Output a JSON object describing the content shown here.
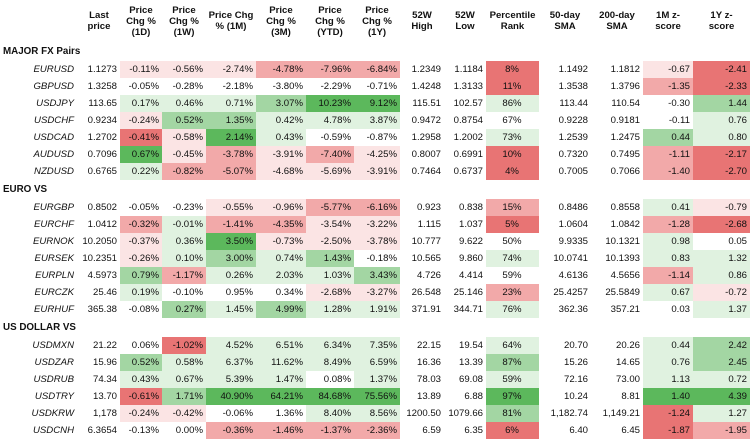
{
  "headers": [
    [
      "Last",
      "price"
    ],
    [
      "Price",
      "Chg %",
      "(1D)"
    ],
    [
      "Price",
      "Chg %",
      "(1W)"
    ],
    [
      "Price Chg",
      "% (1M)"
    ],
    [
      "Price",
      "Chg %",
      "(3M)"
    ],
    [
      "Price",
      "Chg %",
      "(YTD)"
    ],
    [
      "Price",
      "Chg %",
      "(1Y)"
    ],
    [
      "52W",
      "High"
    ],
    [
      "52W",
      "Low"
    ],
    [
      "Percentile",
      "Rank"
    ],
    [
      "50-day",
      "SMA"
    ],
    [
      "200-day",
      "SMA"
    ],
    [
      "1M z-",
      "score"
    ],
    [
      "1Y z-",
      "score"
    ]
  ],
  "colors": {
    "red_strong": "#e87474",
    "red_mid": "#f2a9a9",
    "red_light": "#fbe4e4",
    "green_strong": "#5cb85c",
    "green_mid": "#a3d6a3",
    "green_light": "#e0f2e0"
  },
  "sections": [
    {
      "title": "MAJOR FX Pairs",
      "rows": [
        {
          "name": "EURUSD",
          "cells": [
            "1.1273",
            "-0.11%",
            "-0.56%",
            "-2.74%",
            "-4.78%",
            "-7.96%",
            "-6.84%",
            "1.2349",
            "1.1184",
            "8%",
            "1.1492",
            "1.1812",
            "-0.67",
            "-2.41"
          ],
          "shades": [
            "",
            "rl",
            "rl",
            "rl",
            "rm",
            "rm",
            "rm",
            "",
            "",
            "rs",
            "",
            "",
            "rl",
            "rs"
          ]
        },
        {
          "name": "GBPUSD",
          "cells": [
            "1.3258",
            "-0.05%",
            "-0.28%",
            "-2.18%",
            "-3.80%",
            "-2.29%",
            "-0.71%",
            "1.4248",
            "1.3133",
            "11%",
            "1.3538",
            "1.3796",
            "-1.35",
            "-2.33"
          ],
          "shades": [
            "",
            "",
            "",
            "",
            "",
            "",
            "",
            "",
            "",
            "rs",
            "",
            "",
            "rm",
            "rs"
          ]
        },
        {
          "name": "USDJPY",
          "cells": [
            "113.65",
            "0.17%",
            "0.46%",
            "0.71%",
            "3.07%",
            "10.23%",
            "9.12%",
            "115.51",
            "102.57",
            "86%",
            "113.44",
            "110.54",
            "-0.30",
            "1.44"
          ],
          "shades": [
            "",
            "gl",
            "gl",
            "gl",
            "gm",
            "gs",
            "gs",
            "",
            "",
            "gl",
            "",
            "",
            "",
            "gm"
          ]
        },
        {
          "name": "USDCHF",
          "cells": [
            "0.9234",
            "-0.24%",
            "0.52%",
            "1.35%",
            "0.42%",
            "4.78%",
            "3.87%",
            "0.9472",
            "0.8754",
            "67%",
            "0.9228",
            "0.9181",
            "-0.11",
            "0.76"
          ],
          "shades": [
            "",
            "rl",
            "gm",
            "gm",
            "gl",
            "gl",
            "gl",
            "",
            "",
            "",
            "",
            "",
            "",
            "gl"
          ]
        },
        {
          "name": "USDCAD",
          "cells": [
            "1.2702",
            "-0.41%",
            "-0.58%",
            "2.14%",
            "0.43%",
            "-0.59%",
            "-0.87%",
            "1.2958",
            "1.2002",
            "73%",
            "1.2539",
            "1.2475",
            "0.44",
            "0.80"
          ],
          "shades": [
            "",
            "rs",
            "rl",
            "gs",
            "gl",
            "",
            "",
            "",
            "",
            "gl",
            "",
            "",
            "gm",
            "gl"
          ]
        },
        {
          "name": "AUDUSD",
          "cells": [
            "0.7096",
            "0.67%",
            "-0.45%",
            "-3.78%",
            "-3.91%",
            "-7.40%",
            "-4.25%",
            "0.8007",
            "0.6991",
            "10%",
            "0.7320",
            "0.7495",
            "-1.11",
            "-2.17"
          ],
          "shades": [
            "",
            "gs",
            "rl",
            "rm",
            "rl",
            "rm",
            "rl",
            "",
            "",
            "rs",
            "",
            "",
            "rm",
            "rs"
          ]
        },
        {
          "name": "NZDUSD",
          "cells": [
            "0.6765",
            "0.22%",
            "-0.82%",
            "-5.07%",
            "-4.68%",
            "-5.69%",
            "-3.91%",
            "0.7464",
            "0.6737",
            "4%",
            "0.7005",
            "0.7066",
            "-1.40",
            "-2.70"
          ],
          "shades": [
            "",
            "gl",
            "rm",
            "rm",
            "rl",
            "rl",
            "rl",
            "",
            "",
            "rs",
            "",
            "",
            "rm",
            "rs"
          ]
        }
      ]
    },
    {
      "title": "EURO VS",
      "rows": [
        {
          "name": "EURGBP",
          "cells": [
            "0.8502",
            "-0.05%",
            "-0.23%",
            "-0.55%",
            "-0.96%",
            "-5.77%",
            "-6.16%",
            "0.923",
            "0.838",
            "15%",
            "0.8486",
            "0.8558",
            "0.41",
            "-0.79"
          ],
          "shades": [
            "",
            "",
            "",
            "rl",
            "rl",
            "rm",
            "rm",
            "",
            "",
            "rm",
            "",
            "",
            "gl",
            "rl"
          ]
        },
        {
          "name": "EURCHF",
          "cells": [
            "1.0412",
            "-0.32%",
            "-0.01%",
            "-1.41%",
            "-4.35%",
            "-3.54%",
            "-3.22%",
            "1.115",
            "1.037",
            "5%",
            "1.0604",
            "1.0842",
            "-1.28",
            "-2.68"
          ],
          "shades": [
            "",
            "rm",
            "gl",
            "rm",
            "rm",
            "rl",
            "rl",
            "",
            "",
            "rs",
            "",
            "",
            "rm",
            "rs"
          ]
        },
        {
          "name": "EURNOK",
          "cells": [
            "10.2050",
            "-0.37%",
            "0.36%",
            "3.50%",
            "-0.73%",
            "-2.50%",
            "-3.78%",
            "10.777",
            "9.622",
            "50%",
            "9.9335",
            "10.1321",
            "0.98",
            "0.05"
          ],
          "shades": [
            "",
            "rl",
            "gl",
            "gs",
            "rl",
            "rl",
            "rl",
            "",
            "",
            "",
            "",
            "",
            "gl",
            ""
          ]
        },
        {
          "name": "EURSEK",
          "cells": [
            "10.2351",
            "-0.26%",
            "0.10%",
            "3.00%",
            "0.74%",
            "1.43%",
            "-0.18%",
            "10.565",
            "9.860",
            "74%",
            "10.0741",
            "10.1393",
            "0.83",
            "1.32"
          ],
          "shades": [
            "",
            "rl",
            "gl",
            "gm",
            "gl",
            "gm",
            "",
            "",
            "",
            "gl",
            "",
            "",
            "gl",
            "gl"
          ]
        },
        {
          "name": "EURPLN",
          "cells": [
            "4.5973",
            "0.79%",
            "-1.17%",
            "0.26%",
            "2.03%",
            "1.03%",
            "3.43%",
            "4.726",
            "4.414",
            "59%",
            "4.6136",
            "4.5656",
            "-1.14",
            "0.86"
          ],
          "shades": [
            "",
            "gm",
            "rm",
            "gl",
            "gl",
            "gl",
            "gm",
            "",
            "",
            "",
            "",
            "",
            "rm",
            "gl"
          ]
        },
        {
          "name": "EURCZK",
          "cells": [
            "25.46",
            "0.19%",
            "-0.10%",
            "0.95%",
            "0.34%",
            "-2.68%",
            "-3.27%",
            "26.548",
            "25.146",
            "23%",
            "25.4257",
            "25.5849",
            "0.67",
            "-0.72"
          ],
          "shades": [
            "",
            "gl",
            "",
            "",
            "",
            "rl",
            "rl",
            "",
            "",
            "rm",
            "",
            "",
            "gl",
            "rl"
          ]
        },
        {
          "name": "EURHUF",
          "cells": [
            "365.38",
            "-0.08%",
            "0.27%",
            "1.45%",
            "4.99%",
            "1.28%",
            "1.91%",
            "371.91",
            "344.71",
            "76%",
            "362.36",
            "357.21",
            "0.03",
            "1.37"
          ],
          "shades": [
            "",
            "",
            "gm",
            "gl",
            "gm",
            "gl",
            "gl",
            "",
            "",
            "gl",
            "",
            "",
            "",
            "gl"
          ]
        }
      ]
    },
    {
      "title": "US DOLLAR VS",
      "rows": [
        {
          "name": "USDMXN",
          "cells": [
            "21.22",
            "0.06%",
            "-1.02%",
            "4.52%",
            "6.51%",
            "6.34%",
            "7.35%",
            "22.15",
            "19.54",
            "64%",
            "20.70",
            "20.26",
            "0.44",
            "2.42"
          ],
          "shades": [
            "",
            "",
            "rs",
            "gl",
            "gl",
            "gl",
            "gl",
            "",
            "",
            "gl",
            "",
            "",
            "gl",
            "gm"
          ]
        },
        {
          "name": "USDZAR",
          "cells": [
            "15.96",
            "0.52%",
            "0.58%",
            "6.37%",
            "11.62%",
            "8.49%",
            "6.59%",
            "16.36",
            "13.39",
            "87%",
            "15.26",
            "14.65",
            "0.76",
            "2.45"
          ],
          "shades": [
            "",
            "gm",
            "gl",
            "gl",
            "gl",
            "gl",
            "gl",
            "",
            "",
            "gm",
            "",
            "",
            "gl",
            "gm"
          ]
        },
        {
          "name": "USDRUB",
          "cells": [
            "74.34",
            "0.43%",
            "0.67%",
            "5.39%",
            "1.47%",
            "0.08%",
            "1.37%",
            "78.03",
            "69.08",
            "59%",
            "72.16",
            "73.00",
            "1.13",
            "0.72"
          ],
          "shades": [
            "",
            "gl",
            "gl",
            "gl",
            "gl",
            "",
            "gl",
            "",
            "",
            "gl",
            "",
            "",
            "gl",
            "gl"
          ]
        },
        {
          "name": "USDTRY",
          "cells": [
            "13.70",
            "-0.61%",
            "1.71%",
            "40.90%",
            "64.21%",
            "84.68%",
            "75.56%",
            "13.89",
            "6.88",
            "97%",
            "10.24",
            "8.81",
            "1.40",
            "4.39"
          ],
          "shades": [
            "",
            "rs",
            "gm",
            "gs",
            "gs",
            "gs",
            "gs",
            "",
            "",
            "gs",
            "",
            "",
            "gs",
            "gs"
          ]
        },
        {
          "name": "USDKRW",
          "cells": [
            "1,178",
            "-0.24%",
            "-0.42%",
            "-0.06%",
            "1.36%",
            "8.40%",
            "8.56%",
            "1200.50",
            "1079.66",
            "81%",
            "1,182.74",
            "1,149.21",
            "-1.24",
            "1.27"
          ],
          "shades": [
            "",
            "rl",
            "rl",
            "",
            "",
            "gl",
            "gl",
            "",
            "",
            "gm",
            "",
            "",
            "rs",
            "gl"
          ]
        },
        {
          "name": "USDCNH",
          "cells": [
            "6.3654",
            "-0.13%",
            "0.00%",
            "-0.36%",
            "-1.46%",
            "-1.37%",
            "-2.36%",
            "6.59",
            "6.35",
            "6%",
            "6.40",
            "6.45",
            "-1.87",
            "-1.95"
          ],
          "shades": [
            "",
            "",
            "",
            "rm",
            "rm",
            "rm",
            "rm",
            "",
            "",
            "rs",
            "",
            "",
            "rs",
            "rm"
          ]
        }
      ]
    }
  ]
}
